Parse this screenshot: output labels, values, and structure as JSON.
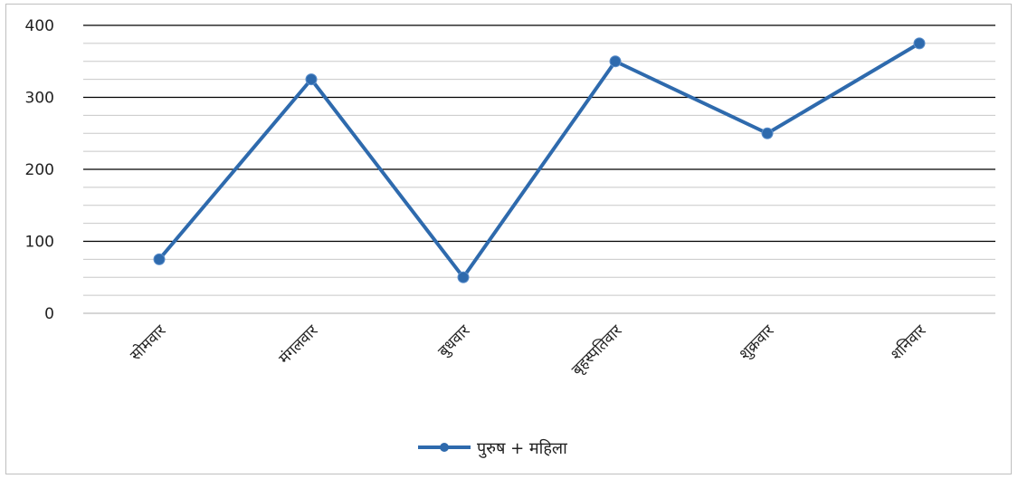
{
  "chart_data": {
    "type": "line",
    "categories": [
      "सोमवार",
      "मंगलवार",
      "बुधवार",
      "बृहस्पतिवार",
      "शुक्रवार",
      "शनिवार"
    ],
    "series": [
      {
        "name": "पुरुष + महिला",
        "values": [
          75,
          325,
          50,
          350,
          250,
          375
        ]
      }
    ],
    "ylim": [
      0,
      400
    ],
    "yticks": [
      0,
      100,
      200,
      300,
      400
    ],
    "minor_step": 25,
    "grid": true,
    "legend": "bottom-center",
    "colors": {
      "series": "#2e6aad",
      "major_grid": "#000000",
      "minor_grid": "#c8c8c8"
    }
  }
}
